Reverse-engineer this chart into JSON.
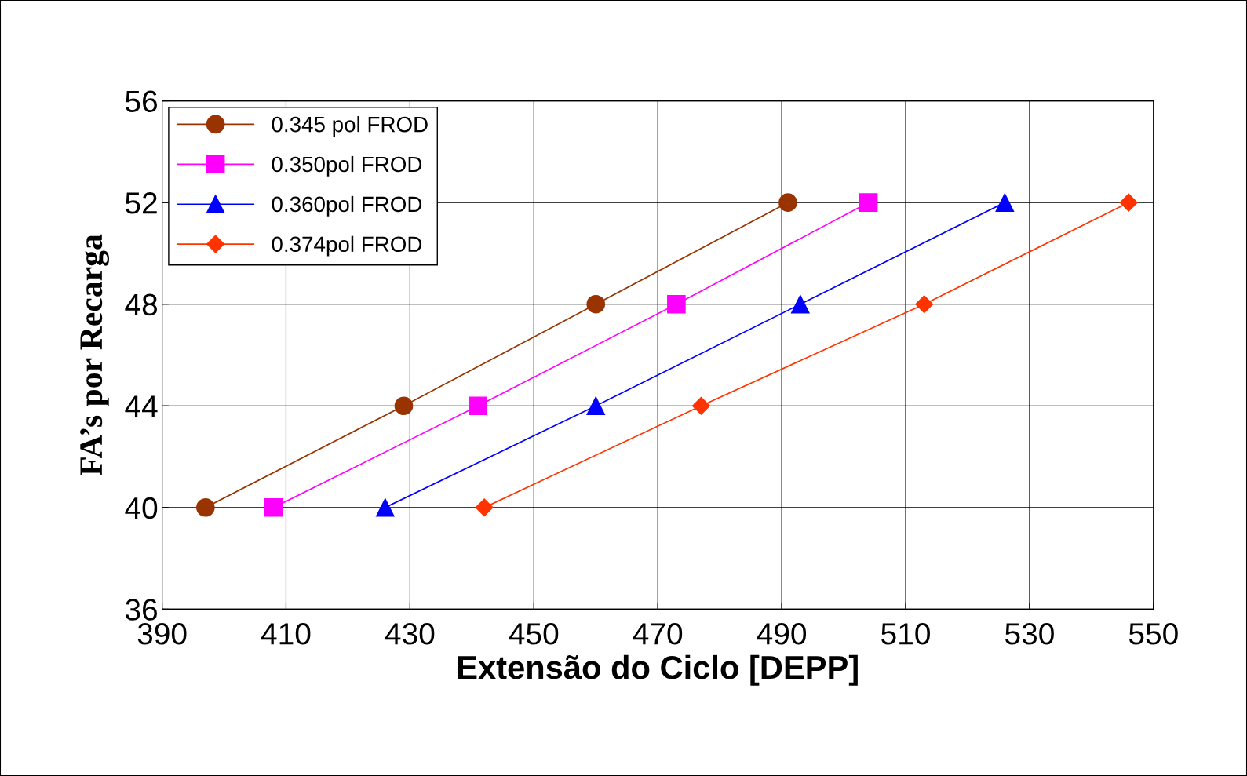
{
  "chart_data": {
    "type": "line",
    "xlabel": "Extensão do Ciclo [DEPP]",
    "ylabel": "FA’s por Recarga",
    "xlim": [
      390,
      550
    ],
    "xticks": [
      390,
      410,
      430,
      450,
      470,
      490,
      510,
      530,
      550
    ],
    "ylim": [
      36,
      56
    ],
    "yticks": [
      36,
      40,
      44,
      48,
      52,
      56
    ],
    "grid": true,
    "legend": "top left",
    "line_style": "solid",
    "series": [
      {
        "name": "0.345 pol FROD",
        "color": "#993300",
        "marker": "circle",
        "x": [
          397,
          429,
          460,
          491
        ],
        "values": [
          40,
          44,
          48,
          52
        ]
      },
      {
        "name": "0.350pol FROD",
        "color": "#ff00ff",
        "marker": "square",
        "x": [
          408,
          441,
          473,
          504
        ],
        "values": [
          40,
          44,
          48,
          52
        ]
      },
      {
        "name": "0.360pol FROD",
        "color": "#0000ff",
        "marker": "triangle",
        "x": [
          426,
          460,
          493,
          526
        ],
        "values": [
          40,
          44,
          48,
          52
        ]
      },
      {
        "name": "0.374pol FROD",
        "color": "#ff3300",
        "marker": "diamond",
        "x": [
          442,
          477,
          513,
          546
        ],
        "values": [
          40,
          44,
          48,
          52
        ]
      }
    ]
  }
}
